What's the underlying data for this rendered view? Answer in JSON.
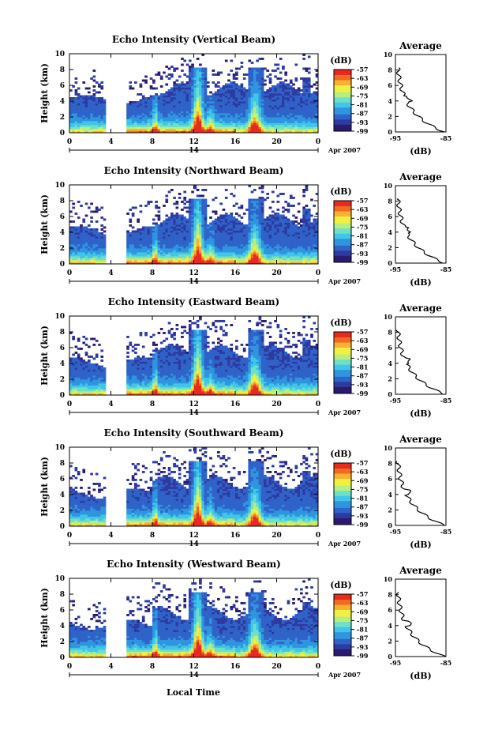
{
  "colors": {
    "scale": [
      "#2a1b6e",
      "#2e3aa0",
      "#2f63c8",
      "#2f95df",
      "#3fc6e8",
      "#6fe0c8",
      "#b6ef80",
      "#f0f040",
      "#f8b030",
      "#f06a22",
      "#e82a1e"
    ]
  },
  "chart_data": [
    {
      "type": "heatmap",
      "title": "Echo Intensity (Vertical Beam)",
      "ylabel": "Height (km)",
      "ylim": [
        0,
        10
      ],
      "yticks": [
        "0",
        "2",
        "4",
        "6",
        "8",
        "10"
      ],
      "xlim": [
        0,
        24
      ],
      "xticks": [
        "0",
        "4",
        "8",
        "12",
        "16",
        "20",
        "0"
      ],
      "date_label": "14",
      "date_suffix": "Apr 2007",
      "colorbar": {
        "unit": "(dB)",
        "ticks": [
          "-57",
          "-63",
          "-69",
          "-75",
          "-81",
          "-87",
          "-93",
          "-99"
        ],
        "range": [
          -99,
          -57
        ]
      },
      "average": {
        "title": "Average",
        "xlabel": "(dB)",
        "xticks": [
          "-95",
          "-85"
        ],
        "xlim": [
          -95,
          -85
        ],
        "ylim": [
          0,
          10
        ],
        "yticks": [
          "0",
          "2",
          "4",
          "6",
          "8",
          "10"
        ]
      }
    },
    {
      "type": "heatmap",
      "title": "Echo Intensity (Northward Beam)",
      "ylabel": "Height (km)",
      "ylim": [
        0,
        10
      ],
      "yticks": [
        "0",
        "2",
        "4",
        "6",
        "8",
        "10"
      ],
      "xlim": [
        0,
        24
      ],
      "xticks": [
        "0",
        "4",
        "8",
        "12",
        "16",
        "20",
        "0"
      ],
      "date_label": "14",
      "date_suffix": "Apr 2007",
      "colorbar": {
        "unit": "(dB)",
        "ticks": [
          "-57",
          "-63",
          "-69",
          "-75",
          "-81",
          "-87",
          "-93",
          "-99"
        ],
        "range": [
          -99,
          -57
        ]
      },
      "average": {
        "title": "Average",
        "xlabel": "(dB)",
        "xticks": [
          "-95",
          "-85"
        ],
        "xlim": [
          -95,
          -85
        ],
        "ylim": [
          0,
          10
        ],
        "yticks": [
          "0",
          "2",
          "4",
          "6",
          "8",
          "10"
        ]
      }
    },
    {
      "type": "heatmap",
      "title": "Echo Intensity (Eastward Beam)",
      "ylabel": "Height (km)",
      "ylim": [
        0,
        10
      ],
      "yticks": [
        "0",
        "2",
        "4",
        "6",
        "8",
        "10"
      ],
      "xlim": [
        0,
        24
      ],
      "xticks": [
        "0",
        "4",
        "8",
        "12",
        "16",
        "20",
        "0"
      ],
      "date_label": "14",
      "date_suffix": "Apr 2007",
      "colorbar": {
        "unit": "(dB)",
        "ticks": [
          "-57",
          "-63",
          "-69",
          "-75",
          "-81",
          "-87",
          "-93",
          "-99"
        ],
        "range": [
          -99,
          -57
        ]
      },
      "average": {
        "title": "Average",
        "xlabel": "(dB)",
        "xticks": [
          "-95",
          "-85"
        ],
        "xlim": [
          -95,
          -85
        ],
        "ylim": [
          0,
          10
        ],
        "yticks": [
          "0",
          "2",
          "4",
          "6",
          "8",
          "10"
        ]
      }
    },
    {
      "type": "heatmap",
      "title": "Echo Intensity (Southward Beam)",
      "ylabel": "Height (km)",
      "ylim": [
        0,
        10
      ],
      "yticks": [
        "0",
        "2",
        "4",
        "6",
        "8",
        "10"
      ],
      "xlim": [
        0,
        24
      ],
      "xticks": [
        "0",
        "4",
        "8",
        "12",
        "16",
        "20",
        "0"
      ],
      "date_label": "14",
      "date_suffix": "Apr 2007",
      "colorbar": {
        "unit": "(dB)",
        "ticks": [
          "-57",
          "-63",
          "-69",
          "-75",
          "-81",
          "-87",
          "-93",
          "-99"
        ],
        "range": [
          -99,
          -57
        ]
      },
      "average": {
        "title": "Average",
        "xlabel": "(dB)",
        "xticks": [
          "-95",
          "-85"
        ],
        "xlim": [
          -95,
          -85
        ],
        "ylim": [
          0,
          10
        ],
        "yticks": [
          "0",
          "2",
          "4",
          "6",
          "8",
          "10"
        ]
      }
    },
    {
      "type": "heatmap",
      "title": "Echo Intensity (Westward Beam)",
      "ylabel": "Height (km)",
      "ylim": [
        0,
        10
      ],
      "yticks": [
        "0",
        "2",
        "4",
        "6",
        "8",
        "10"
      ],
      "xlim": [
        0,
        24
      ],
      "xticks": [
        "0",
        "4",
        "8",
        "12",
        "16",
        "20",
        "0"
      ],
      "date_label": "14",
      "date_suffix": "Apr 2007",
      "colorbar": {
        "unit": "(dB)",
        "ticks": [
          "-57",
          "-63",
          "-69",
          "-75",
          "-81",
          "-87",
          "-93",
          "-99"
        ],
        "range": [
          -99,
          -57
        ]
      },
      "average": {
        "title": "Average",
        "xlabel": "(dB)",
        "xticks": [
          "-95",
          "-85"
        ],
        "xlim": [
          -95,
          -85
        ],
        "ylim": [
          0,
          10
        ],
        "yticks": [
          "0",
          "2",
          "4",
          "6",
          "8",
          "10"
        ]
      }
    }
  ],
  "footer": {
    "xlabel": "Local Time"
  }
}
